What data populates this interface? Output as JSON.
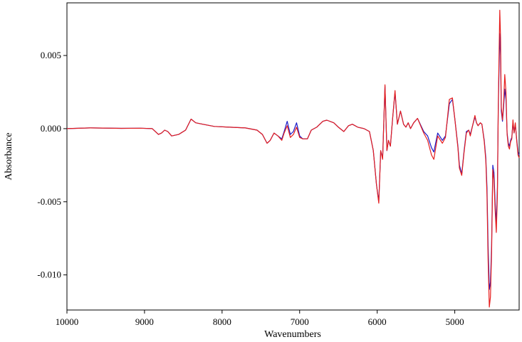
{
  "chart_data": {
    "type": "line",
    "title": "",
    "xlabel": "Wavenumbers",
    "ylabel": "Absorbance",
    "xlim": [
      10000,
      4170
    ],
    "ylim": [
      -0.0124,
      0.0086
    ],
    "x_reversed": true,
    "grid": false,
    "legend": "none",
    "xticks": [
      10000,
      9000,
      8000,
      7000,
      6000,
      5000
    ],
    "xtick_labels": [
      "10000",
      "9000",
      "8000",
      "7000",
      "6000",
      "5000"
    ],
    "yticks": [
      0.005,
      0.0,
      -0.005,
      -0.01
    ],
    "ytick_labels": [
      "0.005",
      "0.000",
      "-0.005",
      "-0.010"
    ],
    "series": [
      {
        "color": "#1a1ac8",
        "points": [
          [
            10000,
            0
          ],
          [
            9700,
            5e-05
          ],
          [
            9300,
            2e-05
          ],
          [
            9050,
            3e-05
          ],
          [
            8900,
            0
          ],
          [
            8820,
            -0.0004
          ],
          [
            8780,
            -0.0003
          ],
          [
            8740,
            -0.0001
          ],
          [
            8700,
            -0.0002
          ],
          [
            8650,
            -0.0005
          ],
          [
            8560,
            -0.0004
          ],
          [
            8470,
            -0.0001
          ],
          [
            8400,
            0.00065
          ],
          [
            8340,
            0.0004
          ],
          [
            8250,
            0.0003
          ],
          [
            8100,
            0.00015
          ],
          [
            7900,
            0.0001
          ],
          [
            7700,
            5e-05
          ],
          [
            7550,
            -0.0001
          ],
          [
            7480,
            -0.0004
          ],
          [
            7420,
            -0.001
          ],
          [
            7380,
            -0.0008
          ],
          [
            7330,
            -0.0003
          ],
          [
            7280,
            -0.0005
          ],
          [
            7230,
            -0.0007
          ],
          [
            7200,
            -0.0002
          ],
          [
            7160,
            0.0005
          ],
          [
            7120,
            -0.0004
          ],
          [
            7080,
            -0.0002
          ],
          [
            7040,
            0.0004
          ],
          [
            7000,
            -0.0005
          ],
          [
            6960,
            -0.0007
          ],
          [
            6900,
            -0.0007
          ],
          [
            6850,
            -0.0001
          ],
          [
            6780,
            0.0001
          ],
          [
            6700,
            0.0005
          ],
          [
            6650,
            0.00058
          ],
          [
            6560,
            0.0004
          ],
          [
            6500,
            0.0001
          ],
          [
            6430,
            -0.0002
          ],
          [
            6370,
            0.0002
          ],
          [
            6320,
            0.0003
          ],
          [
            6250,
            0.0001
          ],
          [
            6170,
            0
          ],
          [
            6100,
            -0.0002
          ],
          [
            6050,
            -0.0015
          ],
          [
            6010,
            -0.0038
          ],
          [
            5980,
            -0.005
          ],
          [
            5955,
            -0.0015
          ],
          [
            5930,
            -0.002
          ],
          [
            5900,
            0.0029
          ],
          [
            5875,
            -0.0015
          ],
          [
            5855,
            -0.0008
          ],
          [
            5830,
            -0.0012
          ],
          [
            5800,
            0.0008
          ],
          [
            5770,
            0.0025
          ],
          [
            5740,
            0.0003
          ],
          [
            5700,
            0.0012
          ],
          [
            5660,
            0.0003
          ],
          [
            5630,
            0.0001
          ],
          [
            5600,
            0.0004
          ],
          [
            5570,
            0
          ],
          [
            5530,
            0.0004
          ],
          [
            5480,
            0.0007
          ],
          [
            5400,
            -0.0002
          ],
          [
            5350,
            -0.0005
          ],
          [
            5300,
            -0.0013
          ],
          [
            5270,
            -0.0016
          ],
          [
            5220,
            -0.0003
          ],
          [
            5160,
            -0.0008
          ],
          [
            5120,
            -0.0005
          ],
          [
            5070,
            0.0017
          ],
          [
            5030,
            0.002
          ],
          [
            5000,
            0.0007
          ],
          [
            4960,
            -0.0012
          ],
          [
            4940,
            -0.0025
          ],
          [
            4910,
            -0.0031
          ],
          [
            4880,
            -0.0015
          ],
          [
            4850,
            -0.0002
          ],
          [
            4820,
            -0.0001
          ],
          [
            4800,
            -0.0004
          ],
          [
            4770,
            0.0002
          ],
          [
            4740,
            0.0008
          ],
          [
            4720,
            0.0004
          ],
          [
            4700,
            0.0002
          ],
          [
            4670,
            0.0004
          ],
          [
            4650,
            0.0003
          ],
          [
            4620,
            -0.0008
          ],
          [
            4600,
            -0.002
          ],
          [
            4585,
            -0.004
          ],
          [
            4570,
            -0.008
          ],
          [
            4555,
            -0.011
          ],
          [
            4540,
            -0.0105
          ],
          [
            4525,
            -0.008
          ],
          [
            4510,
            -0.0025
          ],
          [
            4495,
            -0.003
          ],
          [
            4480,
            -0.005
          ],
          [
            4465,
            -0.0065
          ],
          [
            4450,
            -0.004
          ],
          [
            4440,
            0.001
          ],
          [
            4430,
            0.004
          ],
          [
            4420,
            0.0065
          ],
          [
            4410,
            0.005
          ],
          [
            4400,
            0.0012
          ],
          [
            4385,
            0.0005
          ],
          [
            4370,
            0.0015
          ],
          [
            4355,
            0.0027
          ],
          [
            4340,
            0.002
          ],
          [
            4325,
            -0.0003
          ],
          [
            4310,
            -0.001
          ],
          [
            4295,
            -0.0012
          ],
          [
            4280,
            -0.0008
          ],
          [
            4265,
            -0.0006
          ],
          [
            4250,
            0.0004
          ],
          [
            4235,
            -0.0003
          ],
          [
            4220,
            0.0003
          ],
          [
            4200,
            -0.0008
          ],
          [
            4185,
            -0.0016
          ],
          [
            4170,
            -0.0018
          ]
        ]
      },
      {
        "color": "#e61e1e",
        "points": [
          [
            10000,
            0
          ],
          [
            9700,
            5e-05
          ],
          [
            9300,
            2e-05
          ],
          [
            9050,
            3e-05
          ],
          [
            8900,
            0
          ],
          [
            8820,
            -0.0004
          ],
          [
            8780,
            -0.0003
          ],
          [
            8740,
            -0.0001
          ],
          [
            8700,
            -0.0002
          ],
          [
            8650,
            -0.0005
          ],
          [
            8560,
            -0.0004
          ],
          [
            8470,
            -0.0001
          ],
          [
            8400,
            0.00065
          ],
          [
            8340,
            0.0004
          ],
          [
            8250,
            0.0003
          ],
          [
            8100,
            0.00015
          ],
          [
            7900,
            0.0001
          ],
          [
            7700,
            5e-05
          ],
          [
            7550,
            -0.0001
          ],
          [
            7480,
            -0.0004
          ],
          [
            7420,
            -0.001
          ],
          [
            7380,
            -0.0008
          ],
          [
            7330,
            -0.0003
          ],
          [
            7280,
            -0.0005
          ],
          [
            7230,
            -0.0008
          ],
          [
            7200,
            -0.0003
          ],
          [
            7160,
            0.0002
          ],
          [
            7120,
            -0.0006
          ],
          [
            7080,
            -0.0004
          ],
          [
            7040,
            0.0001
          ],
          [
            7000,
            -0.0006
          ],
          [
            6960,
            -0.0007
          ],
          [
            6900,
            -0.0007
          ],
          [
            6850,
            -0.0001
          ],
          [
            6780,
            0.0001
          ],
          [
            6700,
            0.0005
          ],
          [
            6650,
            0.00058
          ],
          [
            6560,
            0.0004
          ],
          [
            6500,
            0.0001
          ],
          [
            6430,
            -0.0002
          ],
          [
            6370,
            0.0002
          ],
          [
            6320,
            0.0003
          ],
          [
            6250,
            0.0001
          ],
          [
            6170,
            0
          ],
          [
            6100,
            -0.0002
          ],
          [
            6050,
            -0.0015
          ],
          [
            6010,
            -0.0038
          ],
          [
            5980,
            -0.0051
          ],
          [
            5955,
            -0.0015
          ],
          [
            5930,
            -0.0021
          ],
          [
            5900,
            0.003
          ],
          [
            5875,
            -0.0015
          ],
          [
            5855,
            -0.0008
          ],
          [
            5830,
            -0.0012
          ],
          [
            5800,
            0.0008
          ],
          [
            5770,
            0.0026
          ],
          [
            5740,
            0.0003
          ],
          [
            5700,
            0.0012
          ],
          [
            5660,
            0.0003
          ],
          [
            5630,
            0.0001
          ],
          [
            5600,
            0.0004
          ],
          [
            5570,
            0
          ],
          [
            5530,
            0.0004
          ],
          [
            5480,
            0.0007
          ],
          [
            5400,
            -0.0003
          ],
          [
            5350,
            -0.0008
          ],
          [
            5300,
            -0.0018
          ],
          [
            5270,
            -0.0021
          ],
          [
            5220,
            -0.0005
          ],
          [
            5160,
            -0.001
          ],
          [
            5120,
            -0.0006
          ],
          [
            5070,
            0.002
          ],
          [
            5030,
            0.0021
          ],
          [
            5000,
            0.0007
          ],
          [
            4960,
            -0.0013
          ],
          [
            4940,
            -0.0027
          ],
          [
            4910,
            -0.0032
          ],
          [
            4880,
            -0.0016
          ],
          [
            4850,
            -0.0003
          ],
          [
            4820,
            -0.0001
          ],
          [
            4800,
            -0.0005
          ],
          [
            4770,
            0.0002
          ],
          [
            4740,
            0.0009
          ],
          [
            4720,
            0.0004
          ],
          [
            4700,
            0.0002
          ],
          [
            4670,
            0.0004
          ],
          [
            4650,
            0.0003
          ],
          [
            4620,
            -0.0009
          ],
          [
            4600,
            -0.0022
          ],
          [
            4585,
            -0.0045
          ],
          [
            4570,
            -0.009
          ],
          [
            4555,
            -0.0122
          ],
          [
            4540,
            -0.0115
          ],
          [
            4525,
            -0.0085
          ],
          [
            4510,
            -0.0028
          ],
          [
            4495,
            -0.0035
          ],
          [
            4480,
            -0.0055
          ],
          [
            4465,
            -0.0071
          ],
          [
            4450,
            -0.0045
          ],
          [
            4440,
            0.0012
          ],
          [
            4430,
            0.0048
          ],
          [
            4420,
            0.0081
          ],
          [
            4410,
            0.0062
          ],
          [
            4400,
            0.0015
          ],
          [
            4385,
            0.0006
          ],
          [
            4370,
            0.0018
          ],
          [
            4355,
            0.0037
          ],
          [
            4340,
            0.0025
          ],
          [
            4325,
            -0.0004
          ],
          [
            4310,
            -0.0012
          ],
          [
            4295,
            -0.0014
          ],
          [
            4280,
            -0.0009
          ],
          [
            4265,
            -0.0007
          ],
          [
            4250,
            0.0006
          ],
          [
            4235,
            -0.0003
          ],
          [
            4220,
            0.0004
          ],
          [
            4200,
            -0.0009
          ],
          [
            4185,
            -0.0018
          ],
          [
            4170,
            -0.002
          ]
        ]
      }
    ]
  }
}
